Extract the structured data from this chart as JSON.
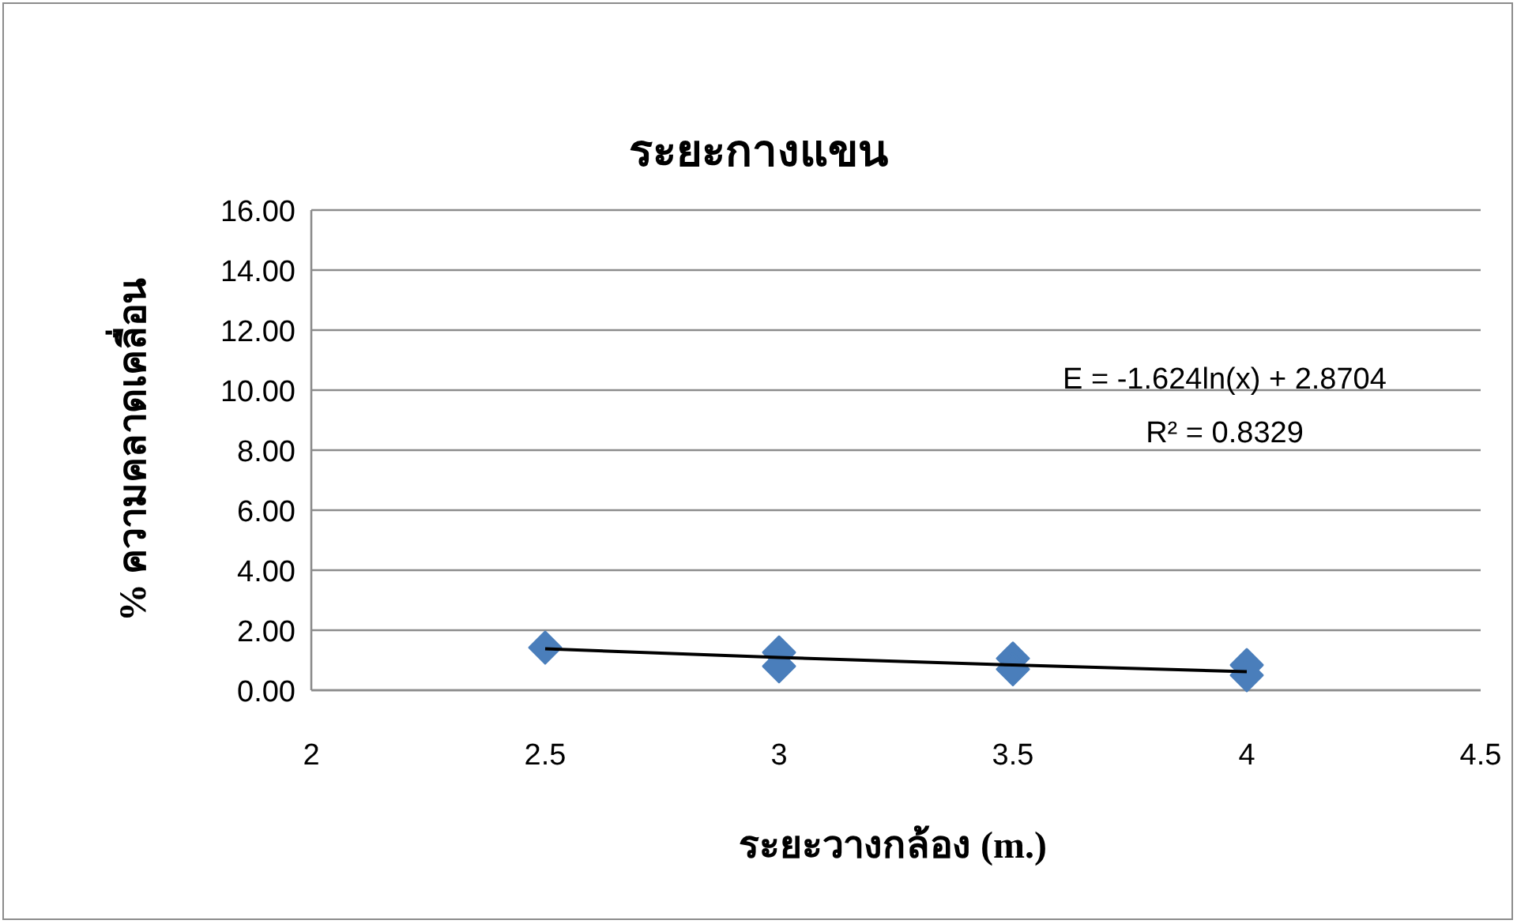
{
  "chart_data": {
    "type": "scatter",
    "title": "ระยะกางแขน",
    "xlabel": "ระยะวางกล้อง (m.)",
    "ylabel": "% ความคลาดเคลื่อน",
    "xlim": [
      2,
      4.5
    ],
    "xticks": [
      2,
      2.5,
      3,
      3.5,
      4,
      4.5
    ],
    "ylim": [
      0,
      16
    ],
    "yticks": [
      {
        "value": 0,
        "label": "0.00"
      },
      {
        "value": 2,
        "label": "2.00"
      },
      {
        "value": 4,
        "label": "4.00"
      },
      {
        "value": 6,
        "label": "6.00"
      },
      {
        "value": 8,
        "label": "8.00"
      },
      {
        "value": 10,
        "label": "10.00"
      },
      {
        "value": 12,
        "label": "12.00"
      },
      {
        "value": 14,
        "label": "14.00"
      },
      {
        "value": 16,
        "label": "16.00"
      }
    ],
    "grid": "y",
    "series": [
      {
        "type": "scatter",
        "color": "#4a7ebb",
        "marker": "diamond",
        "x": [
          2.5,
          3,
          3,
          3.5,
          3.5,
          4,
          4
        ],
        "values": [
          1.42,
          1.26,
          0.8,
          1.06,
          0.7,
          0.84,
          0.5
        ]
      },
      {
        "type": "line",
        "color": "#000000",
        "marker": "none",
        "line_style": "solid",
        "x": [
          2.5,
          3,
          3.5,
          4
        ],
        "values": [
          1.38,
          1.09,
          0.84,
          0.62
        ]
      }
    ],
    "annotations": [
      "E = -1.624ln(x) + 2.8704",
      "R² = 0.8329"
    ]
  }
}
